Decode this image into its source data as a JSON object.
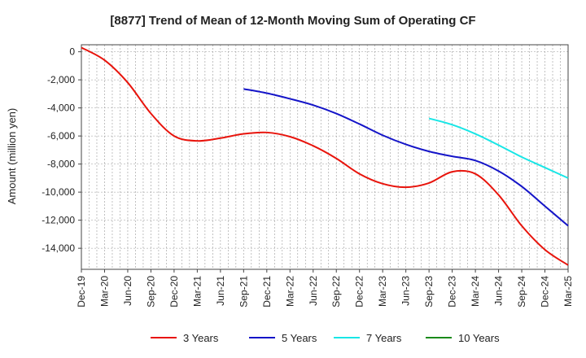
{
  "chart_data": {
    "type": "line",
    "title": "[8877]  Trend of Mean of 12-Month Moving Sum of Operating CF",
    "ylabel": "Amount (million yen)",
    "xlabel": "",
    "ylim": [
      -15500,
      500
    ],
    "yticks": [
      0,
      -2000,
      -4000,
      -6000,
      -8000,
      -10000,
      -12000,
      -14000
    ],
    "ytick_labels": [
      "0",
      "-2,000",
      "-4,000",
      "-6,000",
      "-8,000",
      "-10,000",
      "-12,000",
      "-14,000"
    ],
    "x_tick_labels": [
      "Dec-19",
      "Mar-20",
      "Jun-20",
      "Sep-20",
      "Dec-20",
      "Mar-21",
      "Jun-21",
      "Sep-21",
      "Dec-21",
      "Mar-22",
      "Jun-22",
      "Sep-22",
      "Dec-22",
      "Mar-23",
      "Jun-23",
      "Sep-23",
      "Dec-23",
      "Mar-24",
      "Jun-24",
      "Sep-24",
      "Dec-24",
      "Mar-25"
    ],
    "grid": true,
    "legend_position": "bottom",
    "series": [
      {
        "name": "3 Years",
        "color": "#e8140c",
        "points": [
          [
            0,
            300
          ],
          [
            1,
            -600
          ],
          [
            2,
            -2200
          ],
          [
            3,
            -4400
          ],
          [
            4,
            -6000
          ],
          [
            5,
            -6350
          ],
          [
            6,
            -6150
          ],
          [
            7,
            -5850
          ],
          [
            8,
            -5750
          ],
          [
            9,
            -6050
          ],
          [
            10,
            -6700
          ],
          [
            11,
            -7600
          ],
          [
            12,
            -8700
          ],
          [
            13,
            -9400
          ],
          [
            14,
            -9650
          ],
          [
            15,
            -9350
          ],
          [
            16,
            -8550
          ],
          [
            17,
            -8700
          ],
          [
            18,
            -10200
          ],
          [
            19,
            -12400
          ],
          [
            20,
            -14100
          ],
          [
            21,
            -15200
          ]
        ]
      },
      {
        "name": "5 Years",
        "color": "#1414c8",
        "points": [
          [
            7,
            -2650
          ],
          [
            8,
            -2950
          ],
          [
            9,
            -3350
          ],
          [
            10,
            -3800
          ],
          [
            11,
            -4400
          ],
          [
            12,
            -5150
          ],
          [
            13,
            -5950
          ],
          [
            14,
            -6600
          ],
          [
            15,
            -7100
          ],
          [
            16,
            -7450
          ],
          [
            17,
            -7750
          ],
          [
            18,
            -8500
          ],
          [
            19,
            -9600
          ],
          [
            20,
            -11000
          ],
          [
            21,
            -12400
          ]
        ]
      },
      {
        "name": "7 Years",
        "color": "#18e6e6",
        "points": [
          [
            15,
            -4750
          ],
          [
            16,
            -5200
          ],
          [
            17,
            -5850
          ],
          [
            18,
            -6650
          ],
          [
            19,
            -7500
          ],
          [
            20,
            -8250
          ],
          [
            21,
            -9000
          ]
        ]
      },
      {
        "name": "10 Years",
        "color": "#1a8a1a",
        "points": []
      }
    ]
  }
}
